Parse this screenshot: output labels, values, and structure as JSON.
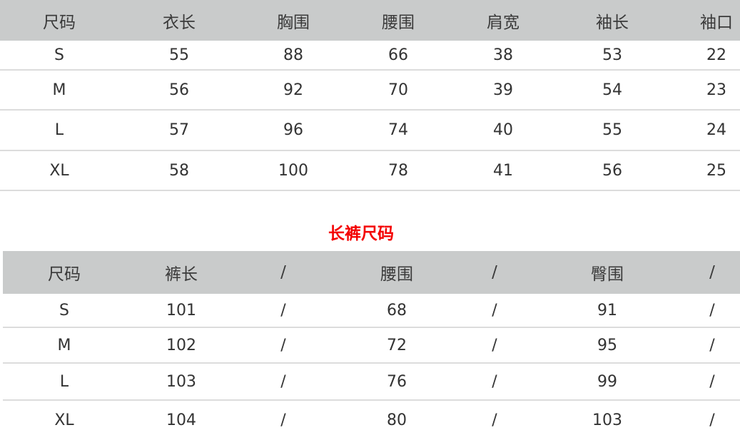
{
  "top_table": {
    "headers": [
      "尺码",
      "衣长",
      "胸围",
      "腰围",
      "肩宽",
      "袖长",
      "袖口"
    ],
    "rows": [
      [
        "S",
        "55",
        "88",
        "66",
        "38",
        "53",
        "22"
      ],
      [
        "M",
        "56",
        "92",
        "70",
        "39",
        "54",
        "23"
      ],
      [
        "L",
        "57",
        "96",
        "74",
        "40",
        "55",
        "24"
      ],
      [
        "XL",
        "58",
        "100",
        "78",
        "41",
        "56",
        "25"
      ]
    ]
  },
  "pants_title": "长裤尺码",
  "title_color": "#f40000",
  "header_color": "#c9cbcb",
  "bottom_table": {
    "headers": [
      "尺码",
      "裤长",
      "/",
      "腰围",
      "/",
      "臀围",
      "/"
    ],
    "rows": [
      [
        "S",
        "101",
        "/",
        "68",
        "/",
        "91",
        "/"
      ],
      [
        "M",
        "102",
        "/",
        "72",
        "/",
        "95",
        "/"
      ],
      [
        "L",
        "103",
        "/",
        "76",
        "/",
        "99",
        "/"
      ],
      [
        "XL",
        "104",
        "/",
        "80",
        "/",
        "103",
        "/"
      ]
    ]
  }
}
